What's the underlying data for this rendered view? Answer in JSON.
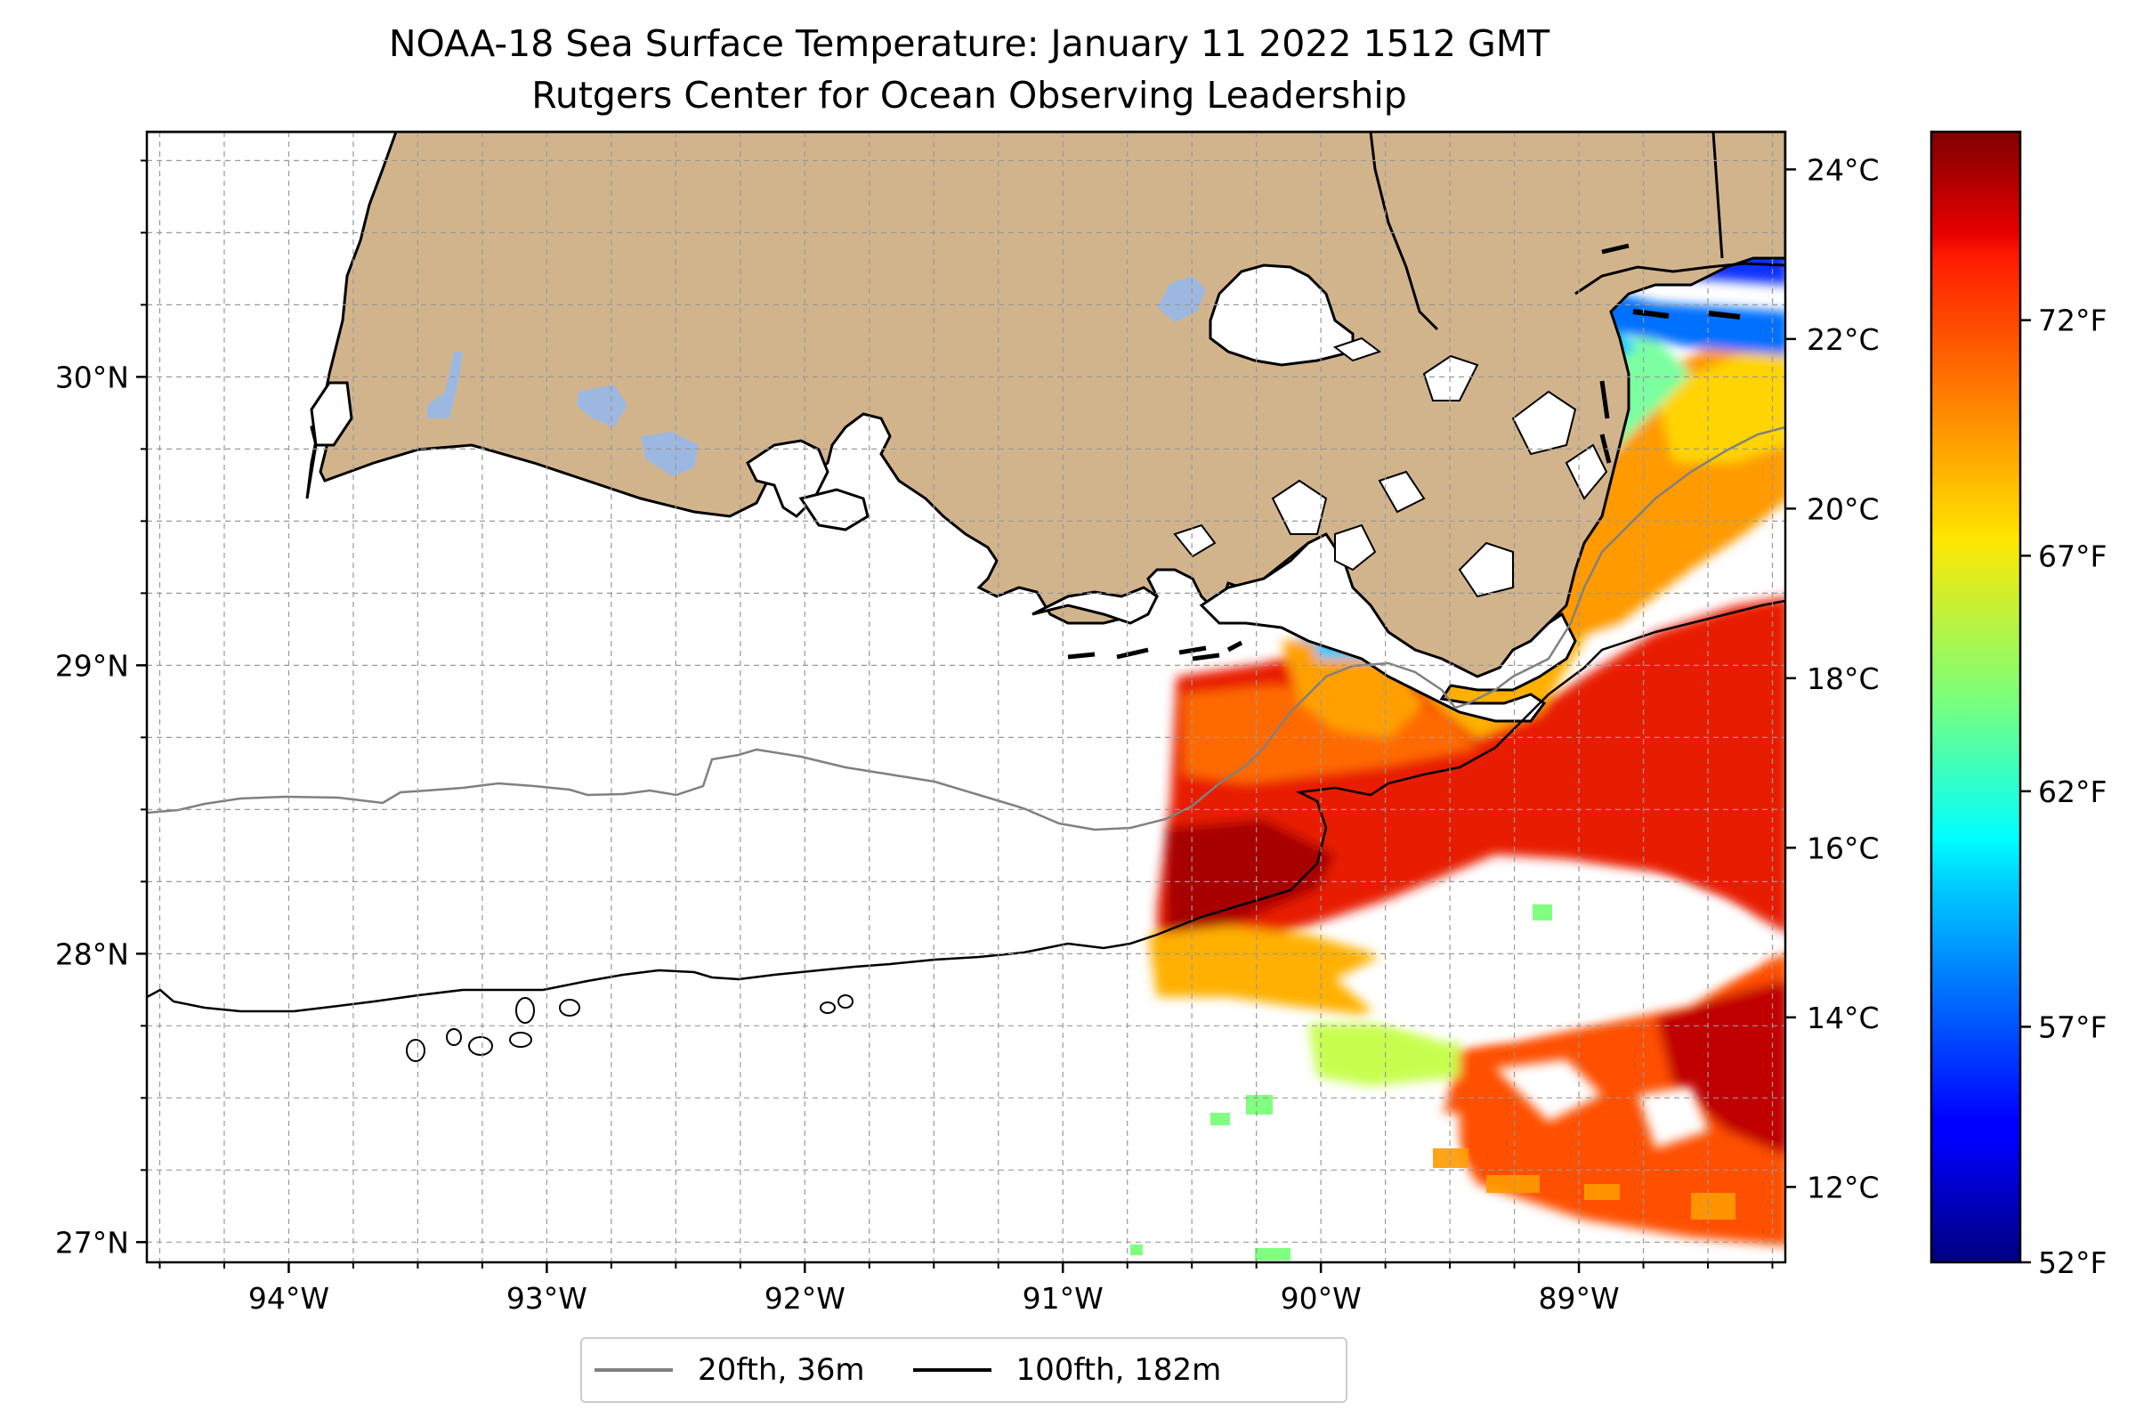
{
  "title": "NOAA-18 Sea Surface Temperature: January 11 2022 1512 GMT",
  "subtitle": "Rutgers Center for Ocean Observing Leadership",
  "map": {
    "lon_range": [
      -94.55,
      -88.2
    ],
    "lat_range": [
      26.93,
      30.85
    ],
    "x_ticks": [
      {
        "value": -94,
        "label": "94°W"
      },
      {
        "value": -93,
        "label": "93°W"
      },
      {
        "value": -92,
        "label": "92°W"
      },
      {
        "value": -91,
        "label": "91°W"
      },
      {
        "value": -90,
        "label": "90°W"
      },
      {
        "value": -89,
        "label": "89°W"
      }
    ],
    "y_ticks": [
      {
        "value": 30,
        "label": "30°N"
      },
      {
        "value": 29,
        "label": "29°N"
      },
      {
        "value": 28,
        "label": "28°N"
      },
      {
        "value": 27,
        "label": "27°N"
      }
    ],
    "gridlines": true,
    "land_color": "#d2b48c",
    "lake_color": "#9db8e0"
  },
  "legend": {
    "placement": "bottom-center",
    "items": [
      {
        "label": "20fth, 36m",
        "color": "#808080"
      },
      {
        "label": "100fth, 182m",
        "color": "#000000"
      }
    ]
  },
  "colorbar": {
    "colormap": "jet",
    "range_F": [
      52,
      76
    ],
    "celsius_ticks": [
      {
        "value": 24,
        "label": "24°C"
      },
      {
        "value": 22,
        "label": "22°C"
      },
      {
        "value": 20,
        "label": "20°C"
      },
      {
        "value": 18,
        "label": "18°C"
      },
      {
        "value": 16,
        "label": "16°C"
      },
      {
        "value": 14,
        "label": "14°C"
      },
      {
        "value": 12,
        "label": "12°C"
      }
    ],
    "fahrenheit_ticks": [
      {
        "value": 72,
        "label": "72°F"
      },
      {
        "value": 67,
        "label": "67°F"
      },
      {
        "value": 62,
        "label": "62°F"
      },
      {
        "value": 57,
        "label": "57°F"
      },
      {
        "value": 52,
        "label": "52°F"
      }
    ]
  }
}
